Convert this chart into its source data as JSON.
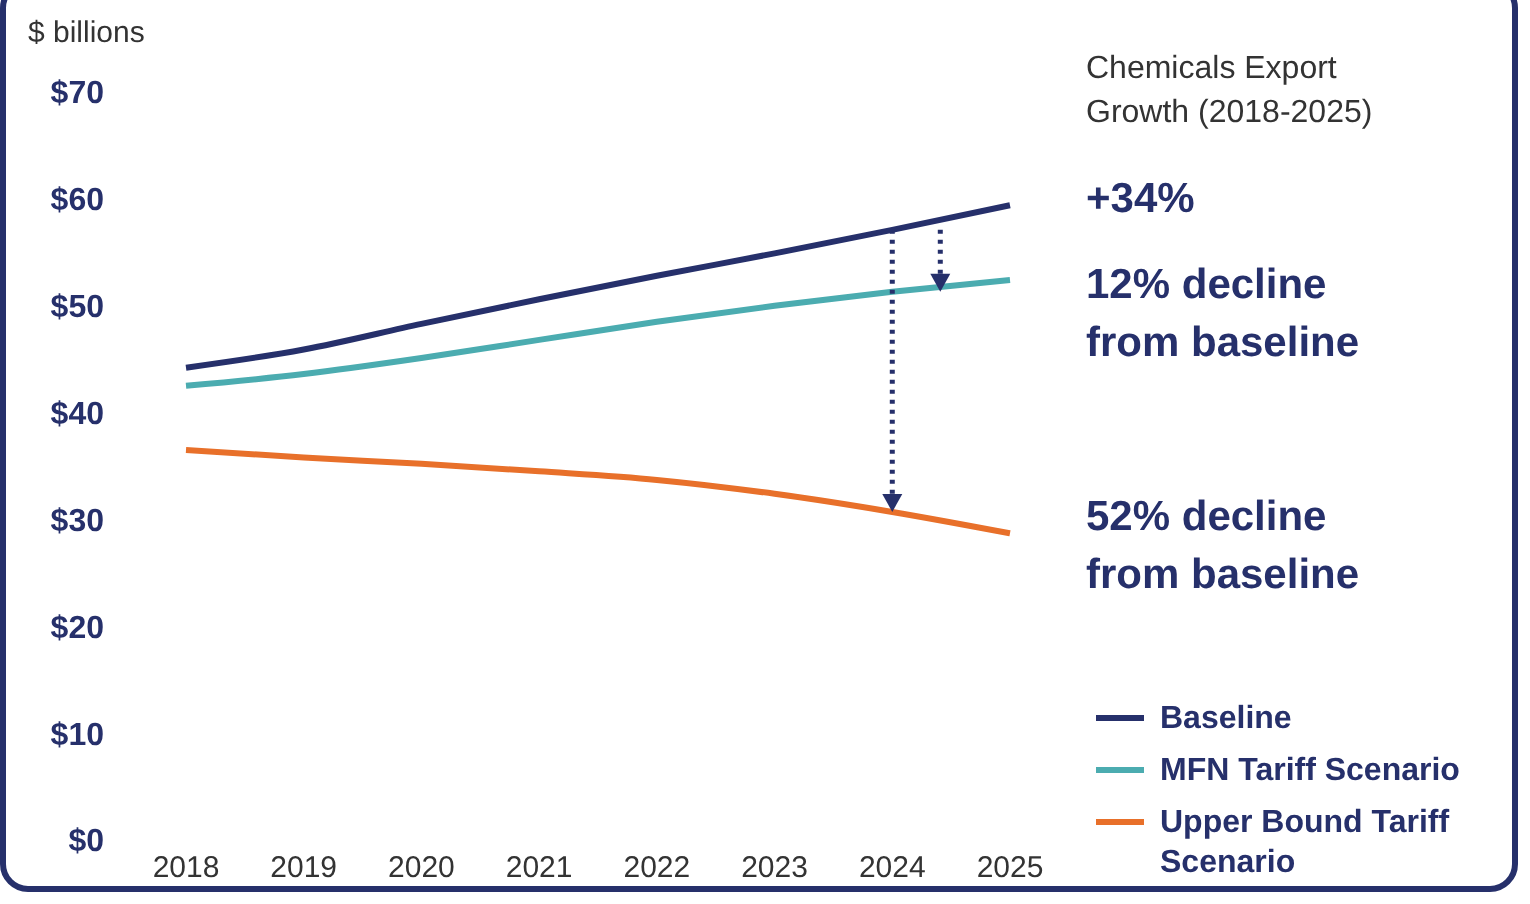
{
  "chart_data": {
    "type": "line",
    "ylabel": "$ billions",
    "categories": [
      "2018",
      "2019",
      "2020",
      "2021",
      "2022",
      "2023",
      "2024",
      "2025"
    ],
    "series": [
      {
        "name": "Baseline",
        "color": "#26306b",
        "values": [
          44.2,
          45.9,
          48.3,
          50.6,
          52.8,
          54.9,
          57.1,
          59.4
        ]
      },
      {
        "name": "MFN Tariff Scenario",
        "color": "#4bacb0",
        "values": [
          42.5,
          43.6,
          45.1,
          46.8,
          48.5,
          50.0,
          51.3,
          52.4
        ]
      },
      {
        "name": "Upper Bound Tariff Scenario",
        "color": "#e8702a",
        "values": [
          36.5,
          35.8,
          35.2,
          34.5,
          33.7,
          32.4,
          30.7,
          28.7
        ]
      }
    ],
    "ylim": [
      0,
      70
    ],
    "yticks": [
      {
        "value": 0,
        "label": "$0"
      },
      {
        "value": 10,
        "label": "$10"
      },
      {
        "value": 20,
        "label": "$20"
      },
      {
        "value": 30,
        "label": "$30"
      },
      {
        "value": 40,
        "label": "$40"
      },
      {
        "value": 50,
        "label": "$50"
      },
      {
        "value": 60,
        "label": "$60"
      },
      {
        "value": 70,
        "label": "$70"
      }
    ],
    "grid": false,
    "legend": "bottom right",
    "marker": "none",
    "line_style": "solid",
    "annotations": [
      "Chemicals Export Growth (2018-2025)",
      "+34%",
      "12% decline from baseline",
      "52% decline from baseline"
    ]
  }
}
